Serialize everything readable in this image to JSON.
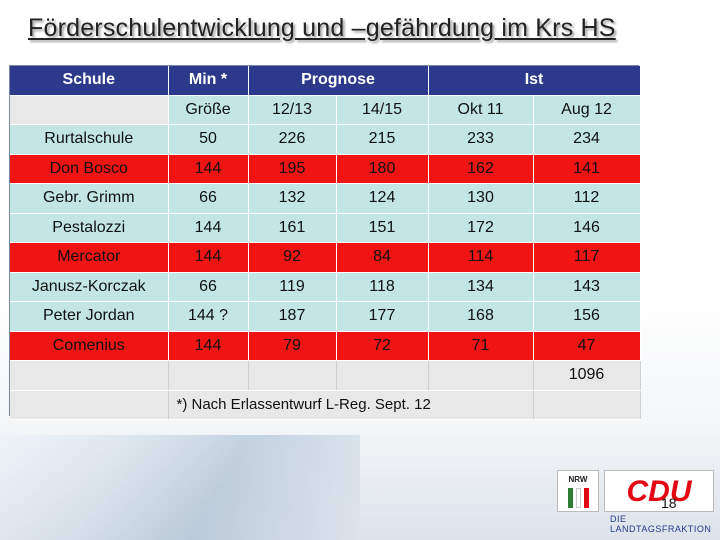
{
  "title": "Förderschulentwicklung und –gefährdung im Krs HS",
  "header": {
    "schule": "Schule",
    "min": "Min *",
    "prognose": "Prognose",
    "ist": "Ist"
  },
  "subheader": {
    "groesse": "Größe",
    "p1": "12/13",
    "p2": "14/15",
    "i1": "Okt 11",
    "i2": "Aug 12"
  },
  "rows": [
    {
      "name": "Rurtalschule",
      "min": "50",
      "p1": "226",
      "p2": "215",
      "i1": "233",
      "i2": "234"
    },
    {
      "name": "Don Bosco",
      "min": "144",
      "p1": "195",
      "p2": "180",
      "i1": "162",
      "i2": "141"
    },
    {
      "name": "Gebr. Grimm",
      "min": "66",
      "p1": "132",
      "p2": "124",
      "i1": "130",
      "i2": "112"
    },
    {
      "name": "Pestalozzi",
      "min": "144",
      "p1": "161",
      "p2": "151",
      "i1": "172",
      "i2": "146"
    },
    {
      "name": "Mercator",
      "min": "144",
      "p1": "92",
      "p2": "84",
      "i1": "114",
      "i2": "117"
    },
    {
      "name": "Janusz-Korczak",
      "min": "66",
      "p1": "119",
      "p2": "118",
      "i1": "134",
      "i2": "143"
    },
    {
      "name": "Peter Jordan",
      "min": "144 ?",
      "p1": "187",
      "p2": "177",
      "i1": "168",
      "i2": "156"
    },
    {
      "name": "Comenius",
      "min": "144",
      "p1": "79",
      "p2": "72",
      "i1": "71",
      "i2": "47"
    }
  ],
  "total": "1096",
  "footnote": "*) Nach Erlassentwurf L-Reg. Sept. 12",
  "logos": {
    "nrw": "NRW",
    "cdu": "CDU",
    "cdu_sub": "DIE LANDTAGSFRAKTION"
  },
  "page_number": "18",
  "colors": {
    "header_bg": "#2d3a8c",
    "row_cyan": "#c3e6e4",
    "row_red": "#f01414",
    "cdu_red": "#e30613"
  }
}
